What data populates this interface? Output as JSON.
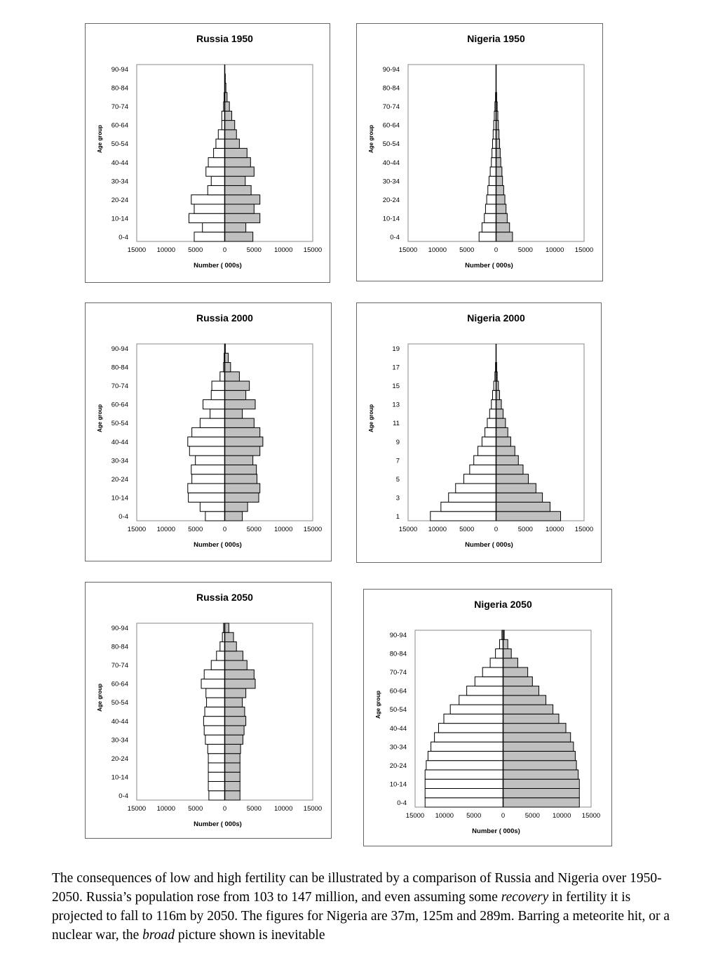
{
  "chart_data": [
    {
      "type": "bar",
      "subtype": "population-pyramid",
      "title": "Russia 1950",
      "xlabel": "Number ( 000s)",
      "ylabel": "Age group",
      "xlim": [
        -15000,
        15000
      ],
      "x_ticks": [
        "15000",
        "10000",
        "5000",
        "0",
        "5000",
        "10000",
        "15000"
      ],
      "age_labels": [
        "0-4",
        "10-14",
        "20-24",
        "30-34",
        "40-44",
        "50-54",
        "60-64",
        "70-74",
        "80-84",
        "90-94"
      ],
      "male": [
        -5200,
        -3800,
        -6100,
        -5200,
        -5700,
        -2900,
        -2300,
        -3200,
        -2800,
        -1900,
        -1500,
        -1100,
        -500,
        -500,
        -200,
        -100,
        0,
        0,
        0
      ],
      "female": [
        4800,
        3600,
        6000,
        5000,
        6000,
        4500,
        3500,
        5000,
        4400,
        3800,
        2500,
        2000,
        1700,
        1200,
        800,
        400,
        200,
        100,
        0
      ]
    },
    {
      "type": "bar",
      "subtype": "population-pyramid",
      "title": "Nigeria 1950",
      "xlabel": "Number ( 000s)",
      "ylabel": "Age group",
      "xlim": [
        -15000,
        15000
      ],
      "x_ticks": [
        "15000",
        "10000",
        "5000",
        "0",
        "5000",
        "10000",
        "15000"
      ],
      "age_labels": [
        "0-4",
        "10-14",
        "20-24",
        "30-34",
        "40-44",
        "50-54",
        "60-64",
        "70-74",
        "80-84",
        "90-94"
      ],
      "male": [
        -2900,
        -2400,
        -2000,
        -1800,
        -1600,
        -1400,
        -1200,
        -1000,
        -800,
        -700,
        -600,
        -500,
        -400,
        -300,
        -200,
        -100,
        0,
        0,
        0
      ],
      "female": [
        2800,
        2300,
        1900,
        1700,
        1500,
        1300,
        1100,
        1000,
        800,
        700,
        600,
        500,
        400,
        300,
        200,
        100,
        0,
        0,
        0
      ]
    },
    {
      "type": "bar",
      "subtype": "population-pyramid",
      "title": "Russia 2000",
      "xlabel": "Number ( 000s)",
      "ylabel": "Age group",
      "xlim": [
        -15000,
        15000
      ],
      "x_ticks": [
        "15000",
        "10000",
        "5000",
        "0",
        "5000",
        "10000",
        "15000"
      ],
      "age_labels": [
        "0-4",
        "10-14",
        "20-24",
        "30-34",
        "40-44",
        "50-54",
        "60-64",
        "70-74",
        "80-84",
        "90-94"
      ],
      "male": [
        -3300,
        -4200,
        -6200,
        -6300,
        -5600,
        -5700,
        -5000,
        -6000,
        -6300,
        -5600,
        -4200,
        -2500,
        -3700,
        -2300,
        -2200,
        -800,
        -200,
        -100,
        0
      ],
      "female": [
        3000,
        3900,
        5800,
        6000,
        5500,
        5400,
        4800,
        6000,
        6500,
        6000,
        5000,
        3000,
        5200,
        3600,
        4200,
        2500,
        1000,
        600,
        100
      ]
    },
    {
      "type": "bar",
      "subtype": "population-pyramid",
      "title": "Nigeria 2000",
      "xlabel": "Number ( 000s)",
      "ylabel": "Age group",
      "xlim": [
        -15000,
        15000
      ],
      "x_ticks": [
        "15000",
        "10000",
        "5000",
        "0",
        "5000",
        "10000",
        "15000"
      ],
      "age_labels": [
        "1",
        "3",
        "5",
        "7",
        "9",
        "11",
        "13",
        "15",
        "17",
        "19"
      ],
      "male": [
        -11200,
        -9400,
        -8100,
        -6900,
        -5500,
        -4500,
        -3800,
        -3100,
        -2400,
        -1900,
        -1500,
        -1100,
        -800,
        -600,
        -400,
        -200,
        -100,
        0,
        0
      ],
      "female": [
        11000,
        9200,
        7900,
        6800,
        5500,
        4600,
        3800,
        3200,
        2500,
        2000,
        1600,
        1200,
        900,
        600,
        400,
        200,
        100,
        0,
        0
      ]
    },
    {
      "type": "bar",
      "subtype": "population-pyramid",
      "title": "Russia 2050",
      "xlabel": "Number ( 000s)",
      "ylabel": "Age group",
      "xlim": [
        -15000,
        15000
      ],
      "x_ticks": [
        "15000",
        "10000",
        "5000",
        "0",
        "5000",
        "10000",
        "15000"
      ],
      "age_labels": [
        "0-4",
        "10-14",
        "20-24",
        "30-34",
        "40-44",
        "50-54",
        "60-64",
        "70-74",
        "80-84",
        "90-94"
      ],
      "male": [
        -2700,
        -2800,
        -2800,
        -2800,
        -2800,
        -2900,
        -3300,
        -3500,
        -3600,
        -3400,
        -3100,
        -3200,
        -4000,
        -3500,
        -2300,
        -1400,
        -800,
        -400,
        -200
      ],
      "female": [
        2600,
        2600,
        2600,
        2600,
        2600,
        2700,
        3100,
        3300,
        3600,
        3400,
        3000,
        3600,
        5200,
        5000,
        3800,
        3100,
        2000,
        1500,
        700
      ]
    },
    {
      "type": "bar",
      "subtype": "population-pyramid",
      "title": "Nigeria 2050",
      "xlabel": "Number ( 000s)",
      "ylabel": "Age group",
      "xlim": [
        -15000,
        15000
      ],
      "x_ticks": [
        "15000",
        "10000",
        "5000",
        "0",
        "5000",
        "10000",
        "15000"
      ],
      "age_labels": [
        "0-4",
        "10-14",
        "20-24",
        "30-34",
        "40-44",
        "50-54",
        "60-64",
        "70-74",
        "80-84",
        "90-94"
      ],
      "male": [
        -13300,
        -13300,
        -13300,
        -13300,
        -13100,
        -12800,
        -12300,
        -11700,
        -11000,
        -10100,
        -9000,
        -7500,
        -6200,
        -4800,
        -3500,
        -2200,
        -1300,
        -600,
        -200
      ],
      "female": [
        13000,
        13000,
        13000,
        12800,
        12500,
        12300,
        12000,
        11500,
        10700,
        9500,
        8500,
        7300,
        6100,
        5000,
        4200,
        2500,
        1400,
        800,
        200
      ]
    }
  ],
  "caption": {
    "p1": "The consequences of low and high fertility can be illustrated by a comparison of Russia and Nigeria over 1950-2050. Russia’s population rose from 103 to 147 million, and even assuming some ",
    "em1": "recovery",
    "p2": " in fertility it is projected to fall to 116m by 2050. The figures for Nigeria are 37m, 125m and 289m. Barring a meteorite hit, or a nuclear war, the ",
    "em2": "broad",
    "p3": " picture shown is inevitable"
  }
}
